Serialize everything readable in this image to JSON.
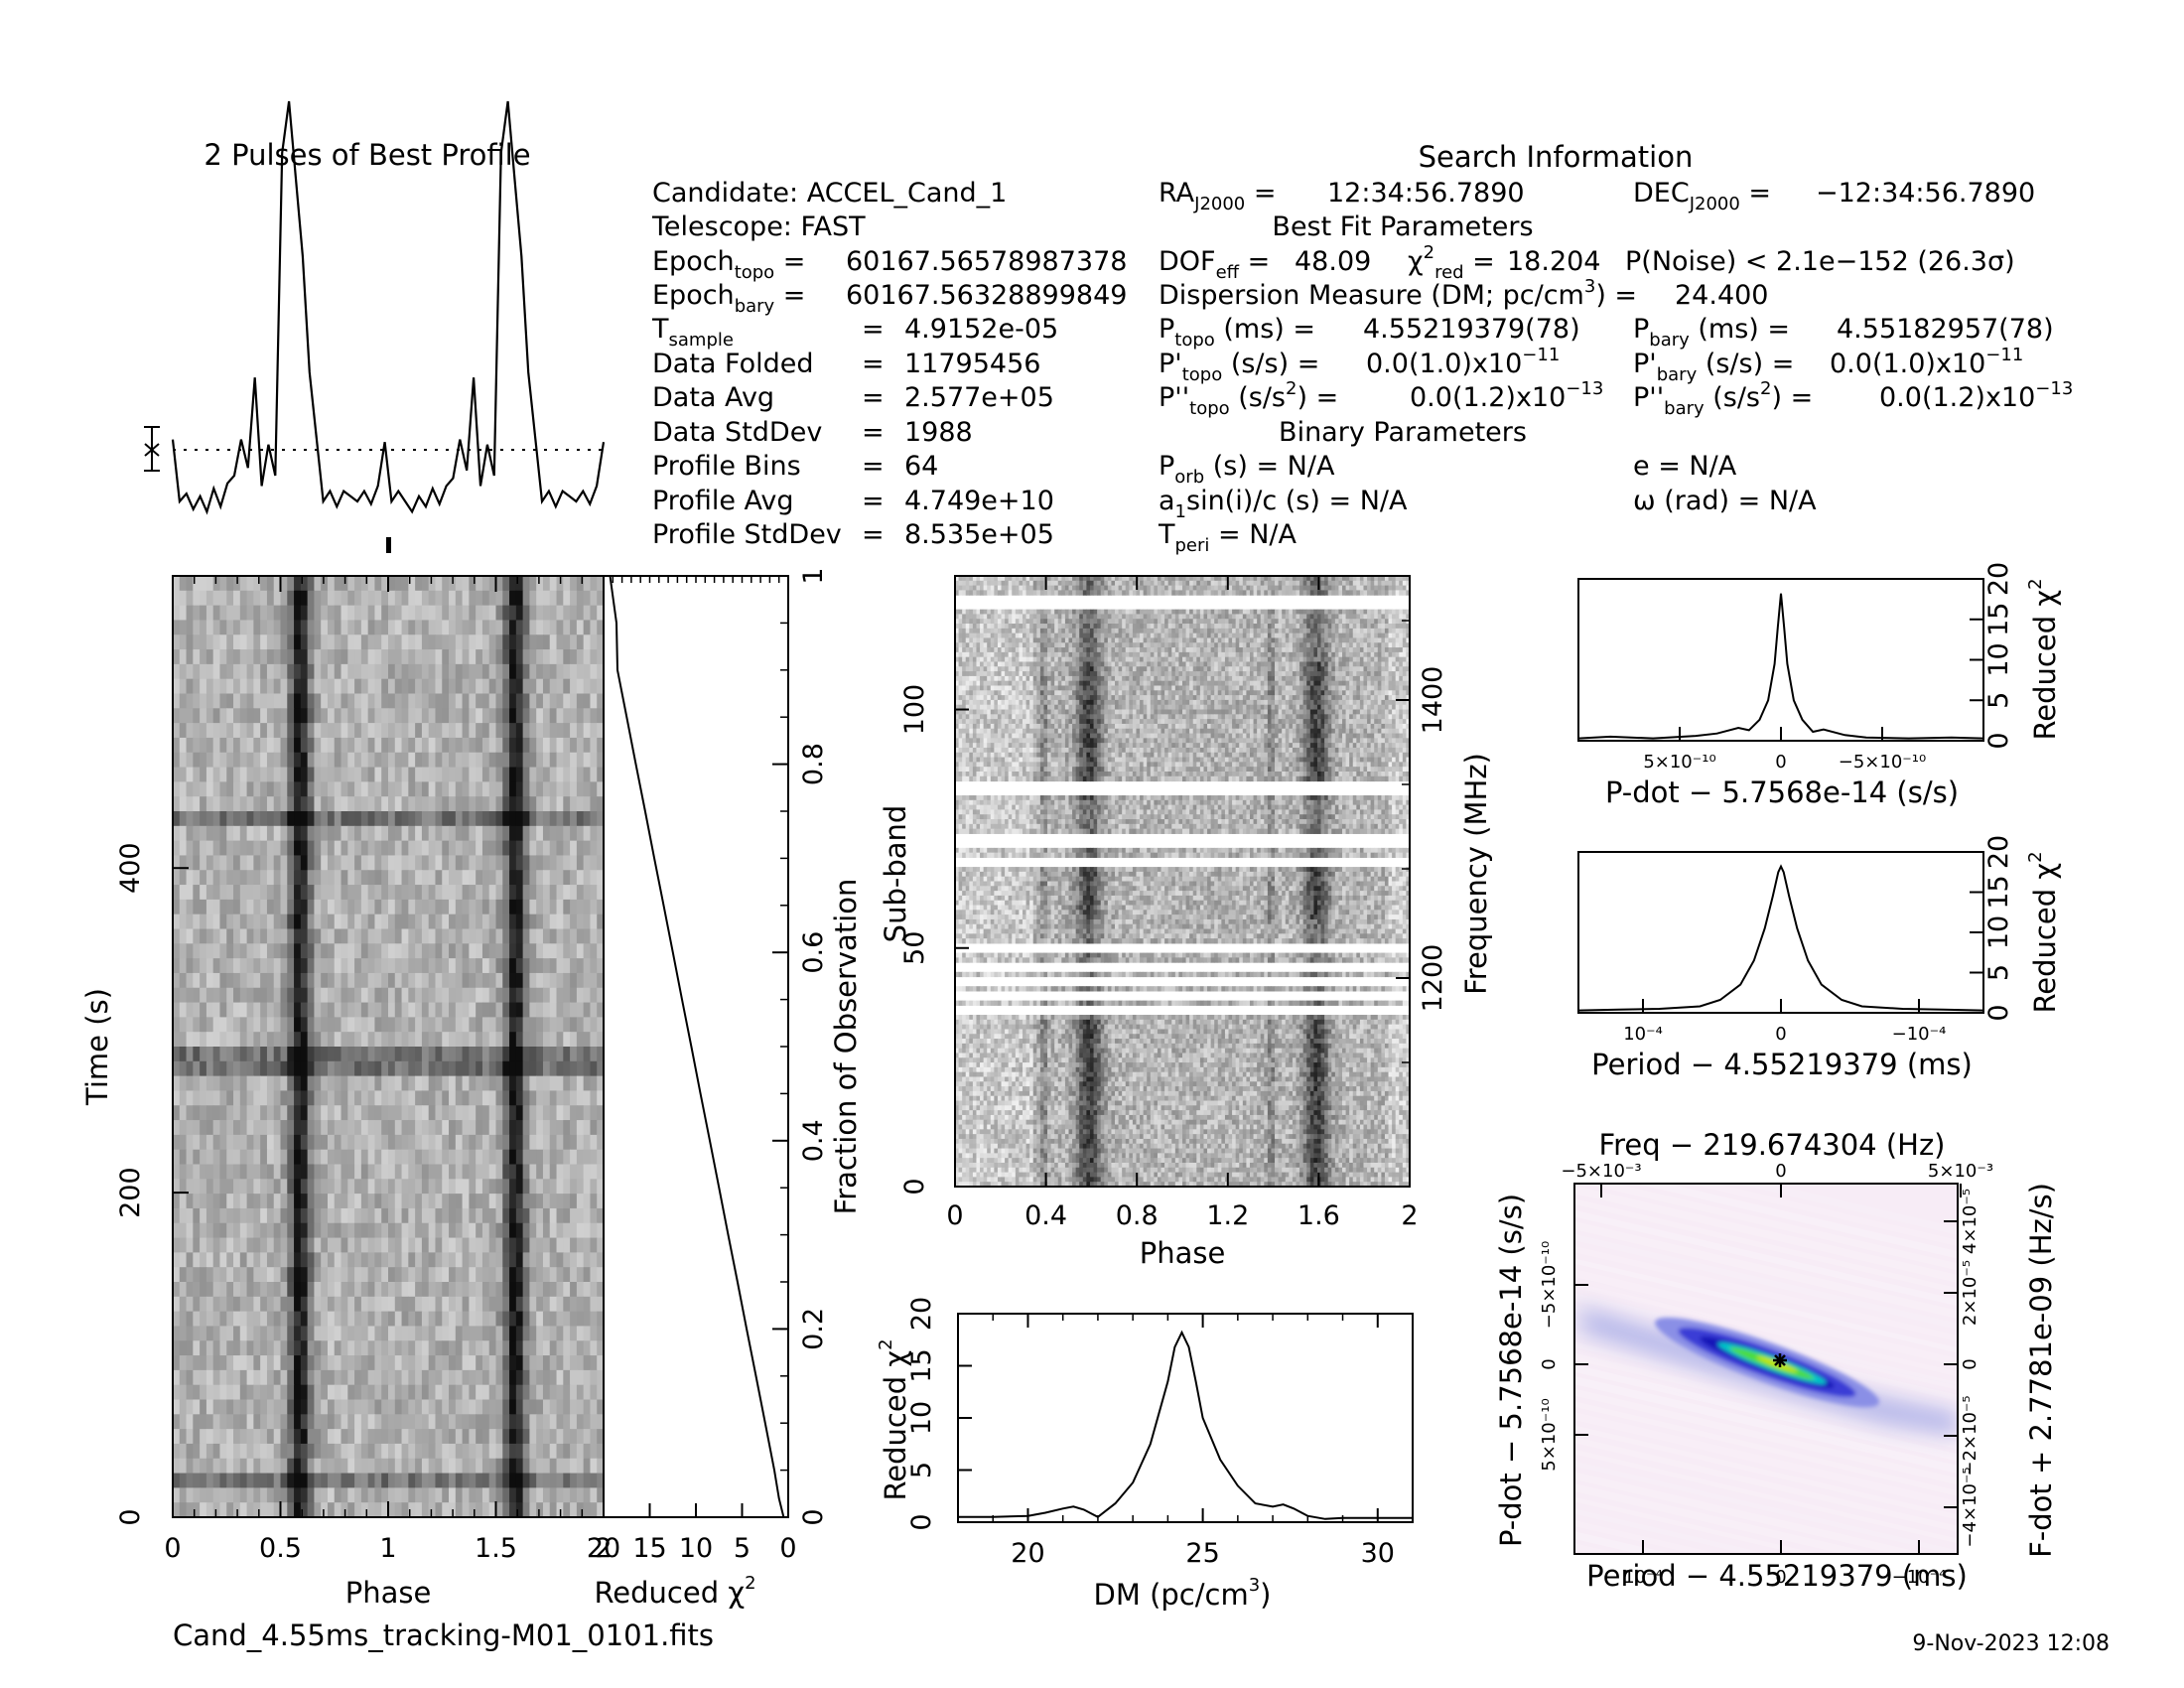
{
  "filename": "Cand_4.55ms_tracking-M01_0101.fits",
  "datestamp": "9-Nov-2023 12:08",
  "info": {
    "search_title": "Search Information",
    "candidate": "Candidate:  ACCEL_Cand_1",
    "telescope": "Telescope:  FAST",
    "epoch_topo": "60167.56578987378",
    "epoch_bary": "60167.56328899849",
    "tsample": "4.9152e-05",
    "data_folded": "11795456",
    "data_avg": "2.577e+05",
    "data_stddev": "1988",
    "profile_bins": "64",
    "profile_avg": "4.749e+10",
    "profile_stddev": "8.535e+05",
    "ra": "12:34:56.7890",
    "dec": "−12:34:56.7890",
    "best_fit_title": "Best Fit Parameters",
    "dof_eff": "48.09",
    "chi2_red": "18.204",
    "p_noise": "P(Noise) < 2.1e−152   (26.3σ)",
    "dm": "24.400",
    "p_topo": "4.55219379(78)",
    "p_bary": "4.55182957(78)",
    "pd_topo": "0.0(1.0)x10",
    "pd_bary": "0.0(1.0)x10",
    "pdd_topo": "0.0(1.2)x10",
    "pdd_bary": "0.0(1.2)x10",
    "binary_title": "Binary Parameters",
    "p_orb": "N/A",
    "e": "e = N/A",
    "a1sini": "N/A",
    "omega": "ω (rad) = N/A",
    "t_peri": "N/A"
  },
  "chart_data": [
    {
      "type": "line",
      "title": "2 Pulses of Best Profile",
      "x": [
        0,
        0.03125,
        0.0625,
        0.09375,
        0.125,
        0.15625,
        0.1875,
        0.21875,
        0.25,
        0.28125,
        0.3125,
        0.34375,
        0.375,
        0.40625,
        0.4375,
        0.46875,
        0.5,
        0.53125,
        0.5625,
        0.59375,
        0.625,
        0.65625,
        0.6875,
        0.71875,
        0.75,
        0.78125,
        0.8125,
        0.84375,
        0.875,
        0.90625,
        0.9375,
        0.96875,
        1,
        1.03125,
        1.0625,
        1.09375,
        1.125,
        1.15625,
        1.1875,
        1.21875,
        1.25,
        1.28125,
        1.3125,
        1.34375,
        1.375,
        1.40625,
        1.4375,
        1.46875,
        1.5,
        1.53125,
        1.5625,
        1.59375,
        1.625,
        1.65625,
        1.6875,
        1.71875,
        1.75,
        1.78125,
        1.8125,
        1.84375,
        1.875,
        1.90625,
        1.9375,
        1.96875
      ],
      "values": [
        0.4,
        -2,
        -1.7,
        -2.3,
        -1.8,
        -2.4,
        -1.5,
        -2.2,
        -1.3,
        -1,
        0.4,
        -0.7,
        2.8,
        -1.4,
        0.2,
        -1,
        11.5,
        13.5,
        10.5,
        7.5,
        3,
        0.5,
        -2,
        -1.6,
        -2.2,
        -1.6,
        -1.8,
        -2,
        -1.6,
        -2.1,
        -1.4,
        0.3,
        -2,
        -1.6,
        -2,
        -2.4,
        -1.8,
        -2.2,
        -1.5,
        -2.1,
        -1.4,
        -1.1,
        0.4,
        -0.8,
        2.8,
        -1.4,
        0.2,
        -1,
        11.5,
        13.5,
        10.5,
        7.5,
        3,
        0.5,
        -2,
        -1.6,
        -2.2,
        -1.6,
        -1.8,
        -2,
        -1.6,
        -2.1,
        -1.4,
        0.3
      ]
    },
    {
      "type": "heatmap",
      "xlabel": "Phase",
      "ylabel": "Time (s)",
      "xlim": [
        0,
        2
      ],
      "ylim": [
        0,
        580
      ],
      "x_ticks": [
        "0",
        "0.5",
        "1",
        "1.5",
        "2"
      ],
      "y_ticks": [
        "0",
        "200",
        "400"
      ],
      "pulse_phases": [
        0.59,
        1.59
      ],
      "bright_rows_s": [
        25,
        280,
        432
      ]
    },
    {
      "type": "line",
      "xlabel": "Reduced χ²",
      "ylabel": "Fraction of Observation",
      "x_ticks": [
        "20",
        "15",
        "10",
        "5",
        "0"
      ],
      "y_ticks": [
        "0",
        "0.2",
        "0.4",
        "0.6",
        "0.8",
        "1"
      ],
      "x": [
        0.5,
        1,
        1.5,
        2.5,
        3.5,
        4.5,
        5.5,
        6.5,
        7.5,
        8.5,
        9.5,
        10.5,
        11.5,
        12.5,
        13.5,
        14.5,
        15.5,
        16.5,
        17.5,
        18.5,
        18.6,
        19.3
      ],
      "y": [
        0,
        0.02,
        0.05,
        0.1,
        0.15,
        0.2,
        0.25,
        0.3,
        0.35,
        0.4,
        0.45,
        0.5,
        0.55,
        0.6,
        0.65,
        0.7,
        0.75,
        0.8,
        0.85,
        0.9,
        0.95,
        1
      ]
    },
    {
      "type": "heatmap",
      "xlabel": "Phase",
      "ylabel": "Sub-band",
      "ylabel_right": "Frequency (MHz)",
      "x_ticks": [
        "0",
        "0.4",
        "0.8",
        "1.2",
        "1.6",
        "2"
      ],
      "y_ticks": [
        "0",
        "50",
        "100"
      ],
      "freq_ticks": [
        "1200",
        "1400"
      ],
      "xlim": [
        0,
        2
      ],
      "ylim": [
        0,
        128
      ],
      "pulse_phases": [
        0.59,
        1.59
      ],
      "zapped_subbands": [
        [
          36,
          37
        ],
        [
          39,
          40
        ],
        [
          42,
          43
        ],
        [
          45,
          46
        ],
        [
          49,
          50
        ],
        [
          67,
          68
        ],
        [
          71,
          73
        ],
        [
          82,
          84
        ],
        [
          121,
          123
        ]
      ]
    },
    {
      "type": "line",
      "xlabel": "DM (pc/cm³)",
      "ylabel": "Reduced χ²",
      "x_ticks": [
        "20",
        "25",
        "30"
      ],
      "y_ticks": [
        "0",
        "5",
        "10",
        "15",
        "20"
      ],
      "xlim": [
        18,
        31
      ],
      "ylim": [
        0,
        20
      ],
      "x": [
        18,
        19,
        20,
        20.5,
        21,
        21.3,
        21.6,
        22,
        22.5,
        23,
        23.5,
        24,
        24.2,
        24.4,
        24.6,
        24.8,
        25,
        25.5,
        26,
        26.5,
        27,
        27.3,
        27.6,
        28,
        28.5,
        29,
        30,
        31
      ],
      "y": [
        0.5,
        0.5,
        0.6,
        0.9,
        1.3,
        1.5,
        1.2,
        0.5,
        1.8,
        3.8,
        7.5,
        13.5,
        16.8,
        18.2,
        16.8,
        13.5,
        10,
        6,
        3.5,
        1.8,
        1.5,
        1.7,
        1.3,
        0.6,
        0.3,
        0.4,
        0.4,
        0.4
      ]
    },
    {
      "type": "line",
      "xlabel": "P-dot − 5.7568e-14 (s/s)",
      "ylabel": "Reduced χ²",
      "x_ticks": [
        "5×10⁻¹⁰",
        "0",
        "−5×10⁻¹⁰"
      ],
      "y_ticks": [
        "0",
        "5",
        "10",
        "15",
        "20"
      ],
      "xlim": [
        9.5,
        -9.5
      ],
      "ylim": [
        0,
        20
      ],
      "x": [
        9.5,
        8,
        6,
        4,
        3,
        2,
        1.5,
        1,
        0.6,
        0.3,
        0.15,
        0,
        -0.15,
        -0.3,
        -0.6,
        -1,
        -1.5,
        -2,
        -3,
        -4,
        -6,
        -8,
        -9.5
      ],
      "y": [
        0.3,
        0.5,
        0.3,
        0.6,
        0.9,
        1.6,
        1.3,
        2.6,
        5,
        9.5,
        14,
        18.2,
        14,
        9.5,
        5,
        2.6,
        1.1,
        1.4,
        0.7,
        0.4,
        0.3,
        0.4,
        0.3
      ]
    },
    {
      "type": "line",
      "xlabel": "Period − 4.55219379 (ms)",
      "ylabel": "Reduced χ²",
      "x_ticks": [
        "10⁻⁴",
        "0",
        "−10⁻⁴"
      ],
      "y_ticks": [
        "0",
        "5",
        "10",
        "15",
        "20"
      ],
      "xlim": [
        1.5,
        -1.5
      ],
      "ylim": [
        0,
        20
      ],
      "x": [
        1.5,
        1.2,
        0.9,
        0.6,
        0.45,
        0.3,
        0.2,
        0.12,
        0.06,
        0.02,
        0,
        -0.02,
        -0.06,
        -0.12,
        -0.2,
        -0.3,
        -0.45,
        -0.6,
        -0.9,
        -1.2,
        -1.5
      ],
      "y": [
        0.3,
        0.4,
        0.5,
        0.8,
        1.6,
        3.5,
        6.5,
        10.5,
        14.5,
        17.5,
        18.2,
        17.5,
        14.5,
        10.5,
        6.5,
        3.5,
        1.6,
        0.8,
        0.5,
        0.4,
        0.3
      ]
    },
    {
      "type": "heatmap",
      "title": "Freq − 219.674304 (Hz)",
      "xlabel": "Period − 4.55219379 (ms)",
      "ylabel": "P-dot − 5.7568e-14 (s/s)",
      "ylabel_right": "F-dot + 2.7781e-09 (Hz/s)",
      "x_ticks": [
        "10⁻⁴",
        "0",
        "−10⁻⁴"
      ],
      "top_ticks": [
        "−5×10⁻³",
        "0",
        "5×10⁻³"
      ],
      "y_ticks": [
        "−5×10⁻¹⁰",
        "0",
        "5×10⁻¹⁰"
      ],
      "right_ticks": [
        "4×10⁻⁵",
        "2×10⁻⁵",
        "0",
        "−2×10⁻⁵",
        "−4×10⁻⁵"
      ],
      "colors": [
        "#ffffff",
        "#f3dcf0",
        "#cfd0ee",
        "#7f84e2",
        "#2a2fd0",
        "#00c8c8",
        "#4cdc3c",
        "#c8e600"
      ]
    }
  ]
}
